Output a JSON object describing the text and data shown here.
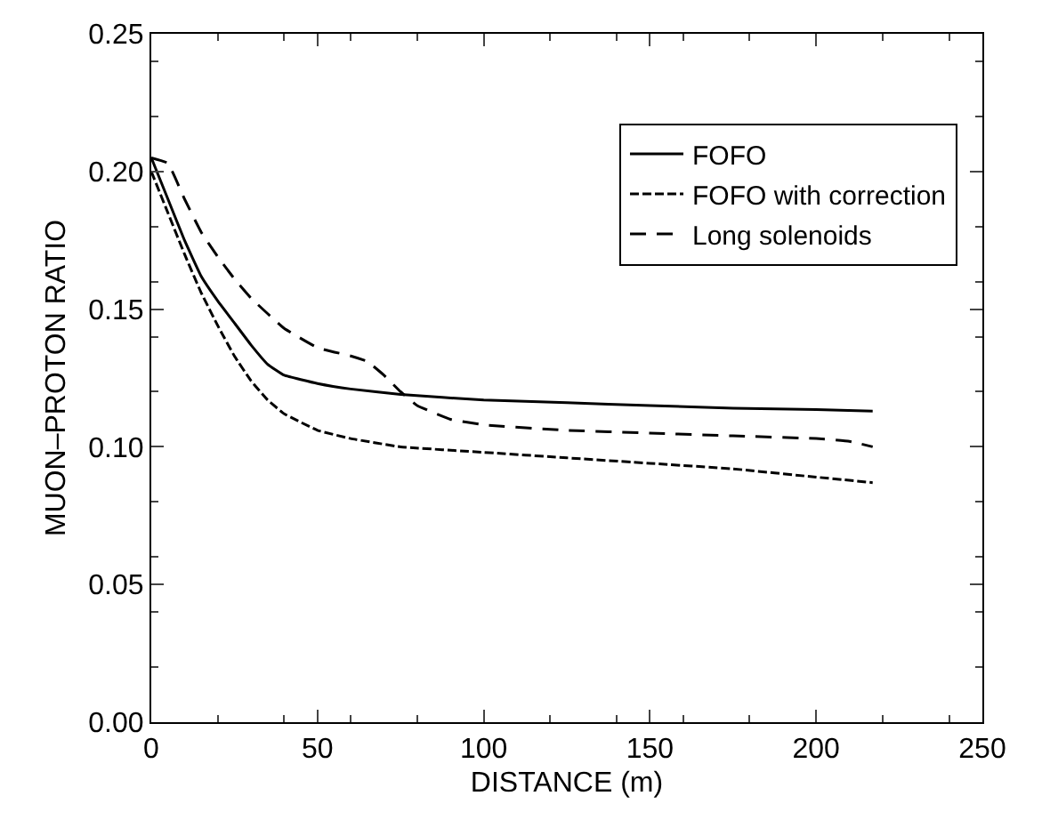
{
  "chart_data": {
    "type": "line",
    "xlabel": "DISTANCE (m)",
    "ylabel": "MUON–PROTON RATIO",
    "xlim": [
      0,
      250
    ],
    "xticks": [
      0,
      50,
      100,
      150,
      200,
      250
    ],
    "ylim": [
      0,
      0.25
    ],
    "yticks": [
      {
        "value": 0,
        "label": "0.00"
      },
      0.05,
      {
        "value": 0.1,
        "label": "0.10"
      },
      0.15,
      {
        "value": 0.2,
        "label": "0.20"
      },
      0.25
    ],
    "legend": "top right",
    "marker": "none",
    "series": [
      {
        "name": "FOFO",
        "color": "#000000",
        "line_style": "solid",
        "x": [
          0,
          5,
          10,
          15,
          20,
          25,
          30,
          35,
          40,
          50,
          60,
          75,
          100,
          125,
          150,
          175,
          200,
          217
        ],
        "values": [
          0.205,
          0.19,
          0.175,
          0.162,
          0.153,
          0.145,
          0.137,
          0.13,
          0.126,
          0.123,
          0.121,
          0.119,
          0.117,
          0.116,
          0.115,
          0.114,
          0.1135,
          0.113
        ]
      },
      {
        "name": "FOFO with correction",
        "color": "#000000",
        "line_style": "dotted",
        "x": [
          0,
          5,
          10,
          15,
          20,
          25,
          30,
          35,
          40,
          50,
          60,
          75,
          100,
          125,
          150,
          175,
          200,
          217
        ],
        "values": [
          0.2,
          0.185,
          0.17,
          0.156,
          0.144,
          0.133,
          0.124,
          0.117,
          0.112,
          0.106,
          0.103,
          0.1,
          0.098,
          0.096,
          0.094,
          0.092,
          0.089,
          0.087
        ]
      },
      {
        "name": "Long solenoids",
        "color": "#000000",
        "line_style": "dashed",
        "x": [
          0,
          5,
          10,
          15,
          20,
          25,
          30,
          40,
          50,
          60,
          65,
          70,
          75,
          80,
          90,
          100,
          125,
          150,
          175,
          200,
          210,
          217
        ],
        "values": [
          0.205,
          0.203,
          0.19,
          0.178,
          0.169,
          0.161,
          0.154,
          0.143,
          0.136,
          0.133,
          0.131,
          0.126,
          0.12,
          0.115,
          0.11,
          0.108,
          0.106,
          0.105,
          0.104,
          0.103,
          0.102,
          0.1
        ]
      }
    ]
  }
}
